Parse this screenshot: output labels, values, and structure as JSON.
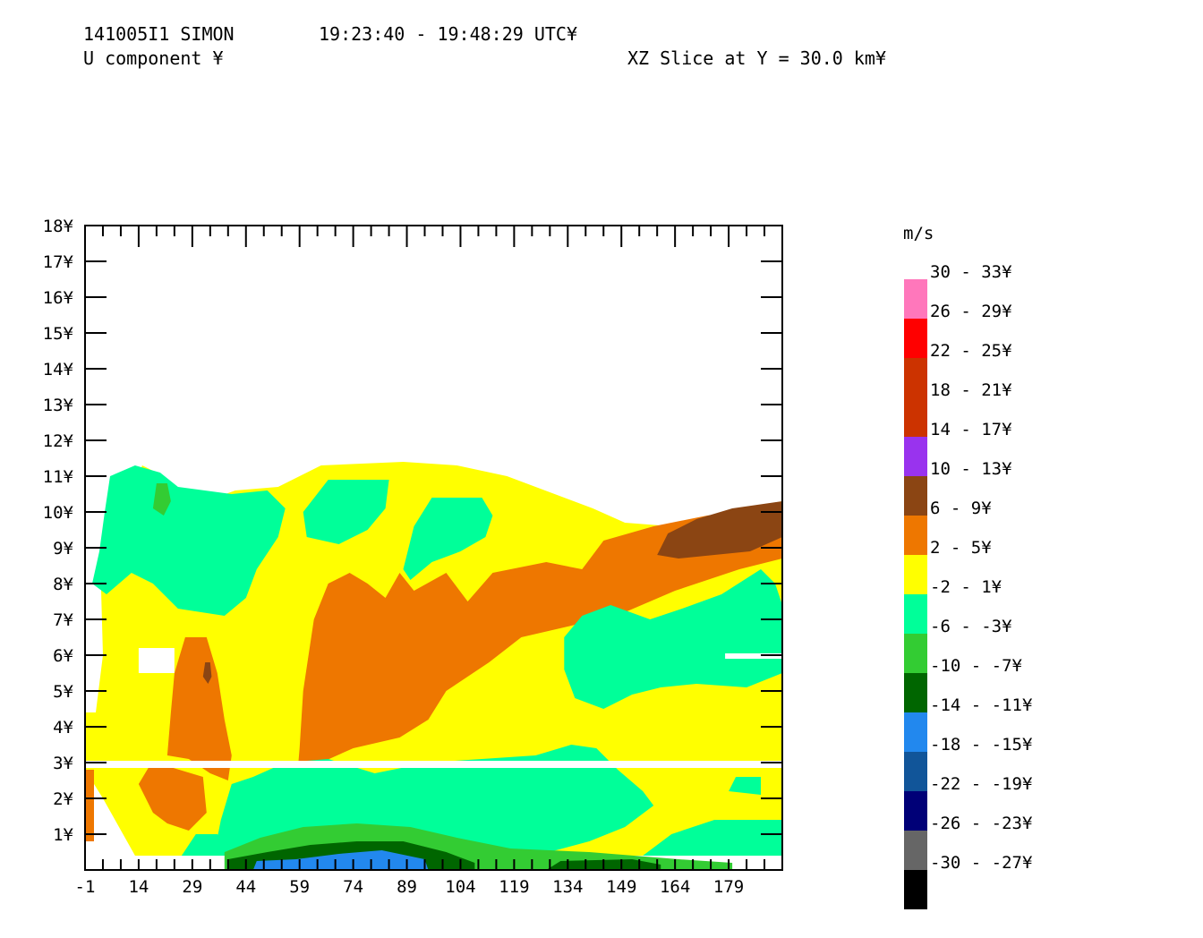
{
  "header": {
    "radar_id": "141005I1 SIMON",
    "time_range": "19:23:40 - 19:48:29 UTC¥",
    "field": "U component ¥",
    "slice": "XZ Slice at Y = 30.0 km¥"
  },
  "chart_data": {
    "type": "heatmap",
    "xlim": [
      -1,
      194
    ],
    "ylim": [
      0,
      18
    ],
    "x_tick_labels": [
      "-1",
      "14",
      "29",
      "44",
      "59",
      "74",
      "89",
      "104",
      "119",
      "134",
      "149",
      "164",
      "179"
    ],
    "y_tick_labels": [
      "1¥",
      "2¥",
      "3¥",
      "4¥",
      "5¥",
      "6¥",
      "7¥",
      "8¥",
      "9¥",
      "10¥",
      "11¥",
      "12¥",
      "13¥",
      "14¥",
      "15¥",
      "16¥",
      "17¥",
      "18¥"
    ],
    "legend": {
      "unit": "m/s",
      "entries": [
        {
          "label": "30 - 33¥",
          "color": "#ff77bb"
        },
        {
          "label": "26 - 29¥",
          "color": "#ff0000"
        },
        {
          "label": "22 - 25¥",
          "color": "#cc3300"
        },
        {
          "label": "18 - 21¥",
          "color": "#cc3300"
        },
        {
          "label": "14 - 17¥",
          "color": "#9933ee"
        },
        {
          "label": "10 - 13¥",
          "color": "#8b4513"
        },
        {
          "label": "6 - 9¥",
          "color": "#ee7700"
        },
        {
          "label": "2 - 5¥",
          "color": "#ffff00"
        },
        {
          "label": "-2 - 1¥",
          "color": "#00ff99"
        },
        {
          "label": "-6 - -3¥",
          "color": "#33cc33"
        },
        {
          "label": "-10 - -7¥",
          "color": "#006600"
        },
        {
          "label": "-14 - -11¥",
          "color": "#2288ee"
        },
        {
          "label": "-18 - -15¥",
          "color": "#115599"
        },
        {
          "label": "-22 - -19¥",
          "color": "#000077"
        },
        {
          "label": "-26 - -23¥",
          "color": "#666666"
        },
        {
          "label": "-30 - -27¥",
          "color": "#000000"
        }
      ]
    },
    "regions": [
      {
        "name": "main-field",
        "level": "2 - 5¥",
        "points": [
          [
            3.5,
            7.8
          ],
          [
            5,
            8
          ],
          [
            6,
            9
          ],
          [
            7.5,
            10
          ],
          [
            12,
            10.5
          ],
          [
            15,
            11.3
          ],
          [
            19,
            11.1
          ],
          [
            24,
            10.3
          ],
          [
            30,
            10.2
          ],
          [
            41,
            10.6
          ],
          [
            53,
            10.7
          ],
          [
            65,
            11.3
          ],
          [
            88,
            11.4
          ],
          [
            103,
            11.3
          ],
          [
            117,
            11
          ],
          [
            141,
            10.1
          ],
          [
            150,
            9.7
          ],
          [
            163,
            9.6
          ],
          [
            178,
            10
          ],
          [
            194,
            10.3
          ],
          [
            194,
            0.4
          ],
          [
            13,
            0.4
          ],
          [
            4,
            2
          ],
          [
            -1,
            2.8
          ],
          [
            -1,
            4.4
          ],
          [
            2,
            4.4
          ],
          [
            4,
            6
          ]
        ]
      },
      {
        "name": "cyan-top-left",
        "level": "-2 - 1¥",
        "points": [
          [
            1,
            8
          ],
          [
            3,
            8.9
          ],
          [
            4.5,
            10
          ],
          [
            6,
            11
          ],
          [
            13,
            11.3
          ],
          [
            20,
            11.1
          ],
          [
            25,
            10.7
          ],
          [
            40,
            10.5
          ],
          [
            50,
            10.6
          ],
          [
            55,
            10.1
          ],
          [
            53,
            9.3
          ],
          [
            47,
            8.4
          ],
          [
            44,
            7.6
          ],
          [
            38,
            7.1
          ],
          [
            25,
            7.3
          ],
          [
            18,
            8
          ],
          [
            12,
            8.3
          ],
          [
            5,
            7.7
          ]
        ]
      },
      {
        "name": "cyan-top-middle",
        "level": "-2 - 1¥",
        "points": [
          [
            60,
            10
          ],
          [
            67,
            10.9
          ],
          [
            84,
            10.9
          ],
          [
            83,
            10.1
          ],
          [
            78,
            9.5
          ],
          [
            70,
            9.1
          ],
          [
            61,
            9.3
          ]
        ]
      },
      {
        "name": "cyan-top-right",
        "level": "-2 - 1¥",
        "points": [
          [
            88,
            8.4
          ],
          [
            91,
            9.6
          ],
          [
            96,
            10.4
          ],
          [
            110,
            10.4
          ],
          [
            113,
            9.9
          ],
          [
            111,
            9.3
          ],
          [
            104,
            8.9
          ],
          [
            96,
            8.6
          ],
          [
            90,
            8.1
          ]
        ]
      },
      {
        "name": "green-small-top",
        "level": "-6 - -3¥",
        "points": [
          [
            18,
            10.1
          ],
          [
            19,
            10.8
          ],
          [
            22,
            10.8
          ],
          [
            23,
            10.3
          ],
          [
            21,
            9.9
          ]
        ]
      },
      {
        "name": "orange-central-band",
        "level": "6 - 9¥",
        "points": [
          [
            58,
            2.2
          ],
          [
            59,
            3.4
          ],
          [
            60,
            5
          ],
          [
            63,
            7
          ],
          [
            67,
            8
          ],
          [
            73,
            8.3
          ],
          [
            78,
            8
          ],
          [
            83,
            7.6
          ],
          [
            87,
            8.3
          ],
          [
            91,
            7.8
          ],
          [
            100,
            8.3
          ],
          [
            106,
            7.5
          ],
          [
            113,
            8.3
          ],
          [
            128,
            8.6
          ],
          [
            138,
            8.4
          ],
          [
            144,
            9.2
          ],
          [
            158,
            9.6
          ],
          [
            173,
            9.9
          ],
          [
            194,
            10.2
          ],
          [
            194,
            8.7
          ],
          [
            182,
            8.4
          ],
          [
            164,
            7.8
          ],
          [
            150,
            7.2
          ],
          [
            134,
            6.8
          ],
          [
            121,
            6.5
          ],
          [
            112,
            5.8
          ],
          [
            100,
            5
          ],
          [
            95,
            4.2
          ],
          [
            87,
            3.7
          ],
          [
            74,
            3.4
          ],
          [
            65,
            3
          ]
        ]
      },
      {
        "name": "orange-left-blob",
        "level": "6 - 9¥",
        "points": [
          [
            22,
            3.2
          ],
          [
            23,
            4.4
          ],
          [
            24,
            5.5
          ],
          [
            27,
            6.5
          ],
          [
            33,
            6.5
          ],
          [
            36,
            5.5
          ],
          [
            38,
            4.2
          ],
          [
            40,
            3.2
          ],
          [
            39,
            2.5
          ],
          [
            34,
            2.7
          ],
          [
            28,
            3.1
          ]
        ]
      },
      {
        "name": "orange-left-lower",
        "level": "6 - 9¥",
        "points": [
          [
            14,
            2.4
          ],
          [
            17,
            2.9
          ],
          [
            22,
            2.9
          ],
          [
            32,
            2.6
          ],
          [
            33,
            1.6
          ],
          [
            28,
            1.1
          ],
          [
            22,
            1.3
          ],
          [
            18,
            1.6
          ]
        ]
      },
      {
        "name": "orange-left-edge",
        "level": "6 - 9¥",
        "points": [
          [
            -1,
            0.8
          ],
          [
            -1,
            2.8
          ],
          [
            1.5,
            2.8
          ],
          [
            1.5,
            0.8
          ]
        ]
      },
      {
        "name": "brown-upper-right",
        "level": "10 - 13¥",
        "points": [
          [
            159,
            8.8
          ],
          [
            162,
            9.4
          ],
          [
            170,
            9.8
          ],
          [
            180,
            10.1
          ],
          [
            194,
            10.3
          ],
          [
            194,
            9.3
          ],
          [
            185,
            8.9
          ],
          [
            175,
            8.8
          ],
          [
            165,
            8.7
          ]
        ]
      },
      {
        "name": "brown-speck",
        "level": "10 - 13¥",
        "points": [
          [
            32,
            5.4
          ],
          [
            32.6,
            5.8
          ],
          [
            34,
            5.8
          ],
          [
            34.4,
            5.4
          ],
          [
            33.4,
            5.2
          ]
        ]
      },
      {
        "name": "cyan-right-middle",
        "level": "-2 - 1¥",
        "points": [
          [
            133,
            6.5
          ],
          [
            138,
            7.1
          ],
          [
            146,
            7.4
          ],
          [
            157,
            7
          ],
          [
            166,
            7.3
          ],
          [
            177,
            7.7
          ],
          [
            188,
            8.4
          ],
          [
            192,
            8
          ],
          [
            194,
            7.4
          ],
          [
            194,
            5.5
          ],
          [
            184,
            5.1
          ],
          [
            170,
            5.2
          ],
          [
            160,
            5.1
          ],
          [
            152,
            4.9
          ],
          [
            144,
            4.5
          ],
          [
            136,
            4.8
          ],
          [
            133,
            5.6
          ]
        ]
      },
      {
        "name": "cyan-lower-band",
        "level": "-2 - 1¥",
        "points": [
          [
            35,
            0.4
          ],
          [
            37,
            1.4
          ],
          [
            40,
            2.4
          ],
          [
            46,
            2.6
          ],
          [
            55,
            3
          ],
          [
            67,
            3.1
          ],
          [
            80,
            2.7
          ],
          [
            95,
            3
          ],
          [
            110,
            3.1
          ],
          [
            125,
            3.2
          ],
          [
            135,
            3.5
          ],
          [
            142,
            3.4
          ],
          [
            148,
            2.8
          ],
          [
            155,
            2.2
          ],
          [
            158,
            1.8
          ],
          [
            150,
            1.2
          ],
          [
            140,
            0.8
          ],
          [
            125,
            0.4
          ]
        ]
      },
      {
        "name": "cyan-lower-right",
        "level": "-2 - 1¥",
        "points": [
          [
            155,
            0.4
          ],
          [
            163,
            1
          ],
          [
            175,
            1.4
          ],
          [
            194,
            1.4
          ],
          [
            194,
            0.4
          ]
        ]
      },
      {
        "name": "cyan-bottom-left-shelf",
        "level": "-2 - 1¥",
        "points": [
          [
            26,
            0.4
          ],
          [
            30,
            1
          ],
          [
            36,
            1
          ],
          [
            40,
            0.6
          ],
          [
            38,
            0.4
          ]
        ]
      },
      {
        "name": "cyan-right-small",
        "level": "-2 - 1¥",
        "points": [
          [
            179,
            2.2
          ],
          [
            181,
            2.6
          ],
          [
            188,
            2.6
          ],
          [
            188,
            2.1
          ]
        ]
      },
      {
        "name": "green-bottom",
        "level": "-6 - -3¥",
        "points": [
          [
            38,
            0
          ],
          [
            38,
            0.5
          ],
          [
            48,
            0.9
          ],
          [
            60,
            1.2
          ],
          [
            75,
            1.3
          ],
          [
            90,
            1.2
          ],
          [
            103,
            0.9
          ],
          [
            118,
            0.6
          ],
          [
            140,
            0.5
          ],
          [
            165,
            0.3
          ],
          [
            180,
            0.2
          ],
          [
            180,
            0
          ]
        ]
      },
      {
        "name": "darkgreen-bottom",
        "level": "-10 - -7¥",
        "points": [
          [
            39,
            0
          ],
          [
            39,
            0.3
          ],
          [
            50,
            0.5
          ],
          [
            62,
            0.7
          ],
          [
            75,
            0.8
          ],
          [
            88,
            0.8
          ],
          [
            100,
            0.5
          ],
          [
            108,
            0.2
          ],
          [
            108,
            0
          ]
        ]
      },
      {
        "name": "darkgreen-bottom-right",
        "level": "-10 - -7¥",
        "points": [
          [
            128,
            0
          ],
          [
            132,
            0.25
          ],
          [
            152,
            0.3
          ],
          [
            160,
            0.15
          ],
          [
            160,
            0
          ]
        ]
      },
      {
        "name": "blue-bottom",
        "level": "-14 - -11¥",
        "points": [
          [
            46,
            0
          ],
          [
            47,
            0.25
          ],
          [
            58,
            0.3
          ],
          [
            70,
            0.45
          ],
          [
            82,
            0.55
          ],
          [
            94,
            0.3
          ],
          [
            95,
            0
          ]
        ]
      }
    ],
    "missing_gaps": [
      {
        "x": [
          -1,
          194
        ],
        "y": [
          2.85,
          3.05
        ]
      },
      {
        "x": [
          14,
          24
        ],
        "y": [
          5.5,
          6.2
        ]
      },
      {
        "x": [
          178,
          194
        ],
        "y": [
          5.9,
          6.05
        ]
      }
    ]
  }
}
